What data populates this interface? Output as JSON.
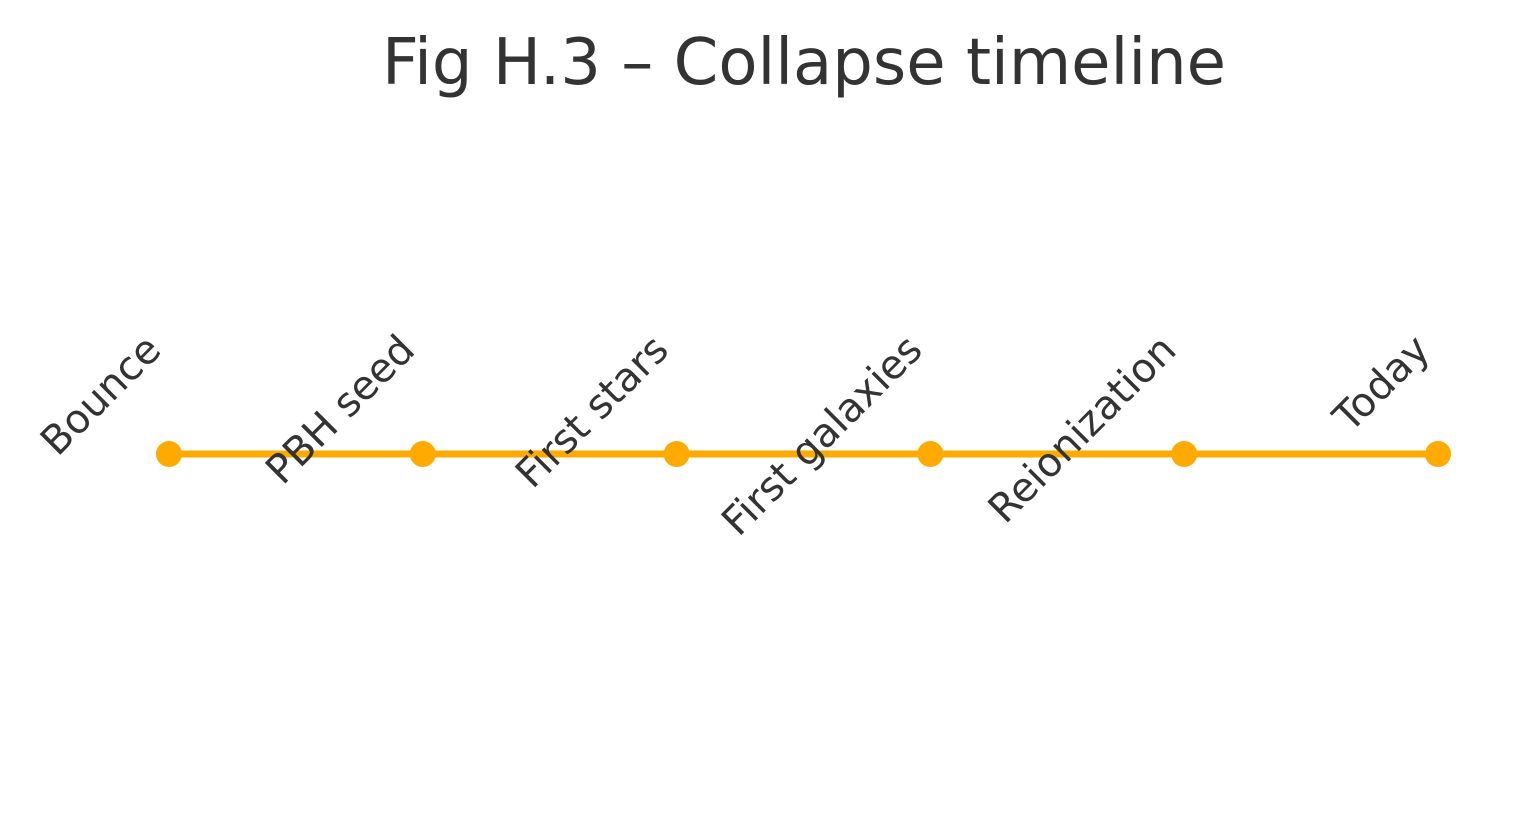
{
  "title": "Fig H.3 – Collapse timeline",
  "colors": {
    "accent": "#FFAA00",
    "text": "#333333",
    "background": "#FFFFFF"
  },
  "timeline": {
    "events": [
      {
        "label": "Bounce"
      },
      {
        "label": "PBH seed"
      },
      {
        "label": "First stars"
      },
      {
        "label": "First galaxies"
      },
      {
        "label": "Reionization"
      },
      {
        "label": "Today"
      }
    ]
  }
}
